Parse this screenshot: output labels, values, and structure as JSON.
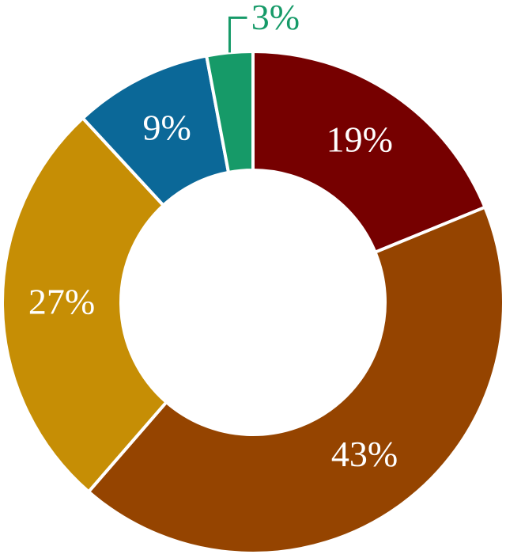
{
  "chart_data": {
    "type": "donut",
    "values": [
      19,
      43,
      27,
      9,
      3
    ],
    "value_labels": [
      "19%",
      "43%",
      "27%",
      "9%",
      "3%"
    ],
    "colors": [
      "#760000",
      "#954400",
      "#c68e05",
      "#0b6898",
      "#169a68"
    ]
  }
}
